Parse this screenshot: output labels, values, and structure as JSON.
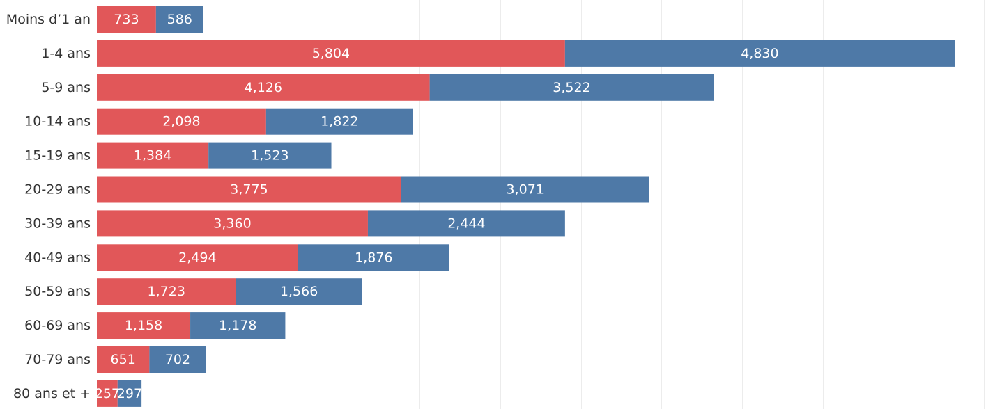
{
  "chart_data": {
    "type": "bar",
    "orientation": "horizontal",
    "stacked": true,
    "categories": [
      "Moins d’1 an",
      "1-4 ans",
      "5-9 ans",
      "10-14 ans",
      "15-19 ans",
      "20-29 ans",
      "30-39 ans",
      "40-49 ans",
      "50-59 ans",
      "60-69 ans",
      "70-79 ans",
      "80 ans et +"
    ],
    "series": [
      {
        "color": "#e15759",
        "values": [
          733,
          5804,
          4126,
          2098,
          1384,
          3775,
          3360,
          2494,
          1723,
          1158,
          651,
          257
        ]
      },
      {
        "color": "#4e79a7",
        "values": [
          586,
          4830,
          3522,
          1822,
          1523,
          3071,
          2444,
          1876,
          1566,
          1178,
          702,
          297
        ]
      }
    ],
    "data_labels": true,
    "grid": "vertical",
    "legend": "none",
    "xlim": [
      0,
      11000
    ],
    "grid_step": 1000
  }
}
